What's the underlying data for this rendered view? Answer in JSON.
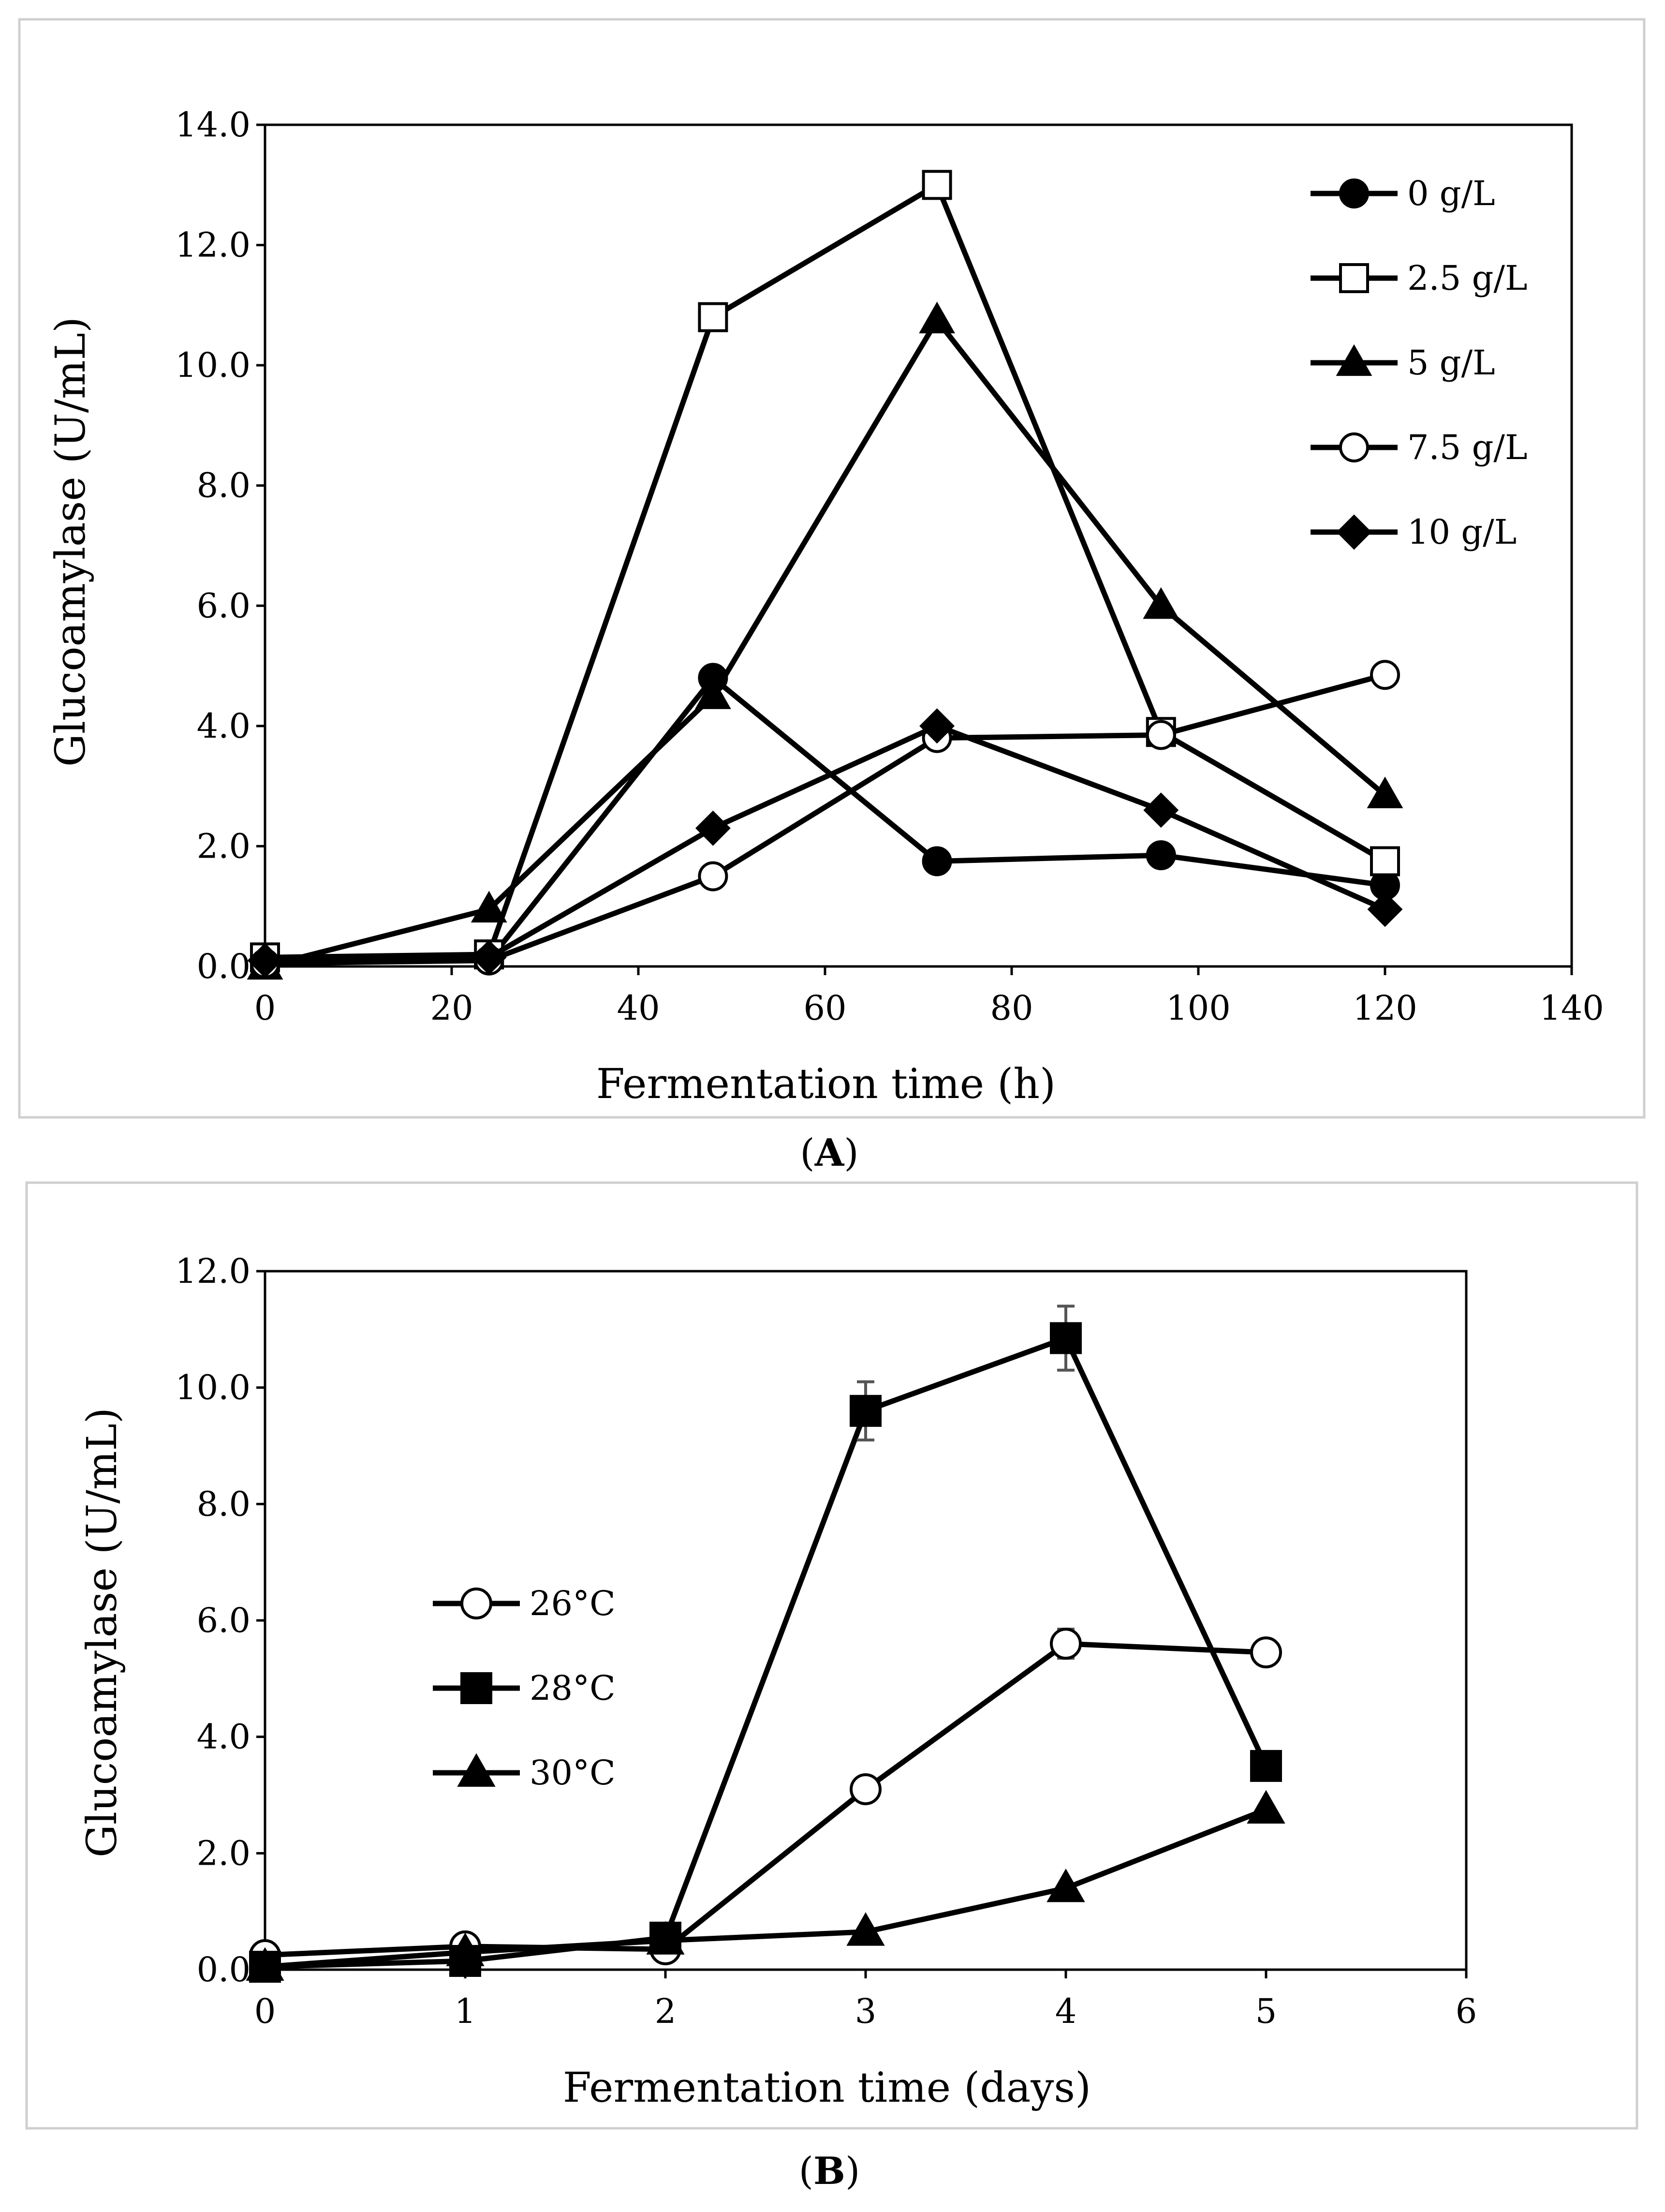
{
  "chart_data": [
    {
      "id": "A",
      "type": "line",
      "panel_label": "A",
      "xlabel": "Fermentation time (h)",
      "ylabel": "Glucoamylase (U/mL)",
      "xlim": [
        0,
        140
      ],
      "ylim": [
        0,
        14
      ],
      "xticks": [
        0,
        20,
        40,
        60,
        80,
        100,
        120,
        140
      ],
      "yticks": [
        0,
        2,
        4,
        6,
        8,
        10,
        12,
        14
      ],
      "yticks_label": [
        "0.0",
        "2.0",
        "4.0",
        "6.0",
        "8.0",
        "10.0",
        "12.0",
        "14.0"
      ],
      "xticks_label": [
        "0",
        "20",
        "40",
        "60",
        "80",
        "100",
        "120",
        "140"
      ],
      "legend_position": "top-right",
      "x": [
        0,
        24,
        48,
        72,
        96,
        120
      ],
      "series": [
        {
          "name": "0 g/L",
          "marker": "circle",
          "filled": true,
          "values": [
            0.1,
            0.1,
            4.8,
            1.75,
            1.85,
            1.35
          ]
        },
        {
          "name": "2.5 g/L",
          "marker": "square",
          "filled": false,
          "values": [
            0.15,
            0.2,
            10.8,
            13.0,
            3.9,
            1.75
          ]
        },
        {
          "name": "5 g/L",
          "marker": "triangle",
          "filled": true,
          "values": [
            0.0,
            0.95,
            4.5,
            10.75,
            6.0,
            2.85
          ]
        },
        {
          "name": "7.5 g/L",
          "marker": "circle",
          "filled": false,
          "values": [
            0.05,
            0.1,
            1.5,
            3.8,
            3.85,
            4.85
          ]
        },
        {
          "name": "10 g/L",
          "marker": "diamond",
          "filled": true,
          "values": [
            0.1,
            0.15,
            2.3,
            4.0,
            2.6,
            0.95
          ]
        }
      ]
    },
    {
      "id": "B",
      "type": "line",
      "panel_label": "B",
      "xlabel": "Fermentation time (days)",
      "ylabel": "Glucoamylase (U/mL)",
      "xlim": [
        0,
        6
      ],
      "ylim": [
        0,
        12
      ],
      "xticks": [
        0,
        1,
        2,
        3,
        4,
        5,
        6
      ],
      "yticks": [
        0,
        2,
        4,
        6,
        8,
        10,
        12
      ],
      "yticks_label": [
        "0.0",
        "2.0",
        "4.0",
        "6.0",
        "8.0",
        "10.0",
        "12.0"
      ],
      "xticks_label": [
        "0",
        "1",
        "2",
        "3",
        "4",
        "5",
        "6"
      ],
      "legend_position": "middle-left",
      "x": [
        0,
        1,
        2,
        3,
        4,
        5
      ],
      "series": [
        {
          "name": "26°C",
          "marker": "circle",
          "filled": false,
          "values": [
            0.25,
            0.4,
            0.35,
            3.1,
            5.6,
            5.45
          ],
          "errors": [
            0,
            0,
            0,
            0,
            0.25,
            0
          ]
        },
        {
          "name": "28°C",
          "marker": "square",
          "filled": true,
          "values": [
            0.05,
            0.15,
            0.55,
            9.6,
            10.85,
            3.5
          ],
          "errors": [
            0,
            0,
            0,
            0.5,
            0.55,
            0
          ]
        },
        {
          "name": "30°C",
          "marker": "triangle",
          "filled": true,
          "values": [
            0.05,
            0.3,
            0.5,
            0.65,
            1.4,
            2.75
          ],
          "errors": [
            0,
            0,
            0,
            0,
            0,
            0
          ]
        }
      ]
    }
  ]
}
